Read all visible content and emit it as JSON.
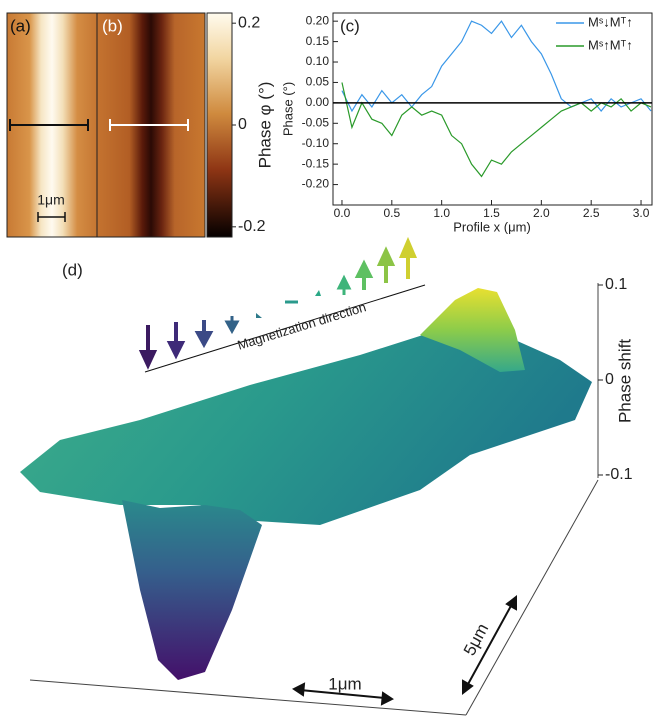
{
  "chart_data": [
    {
      "type": "phase-images",
      "panel_labels": [
        "(a)",
        "(b)"
      ],
      "scale_bar_label": "1μm",
      "colorbar": {
        "label": "Phase φ (°)",
        "lim": [
          -0.22,
          0.22
        ],
        "ticks": [
          0.2,
          0,
          -0.2
        ]
      }
    },
    {
      "type": "line",
      "panel_label": "(c)",
      "y_label": "Phase (°)",
      "x_label": "Profile x (μm)",
      "x": [
        0,
        0.1,
        0.2,
        0.3,
        0.4,
        0.5,
        0.6,
        0.7,
        0.8,
        0.9,
        1.0,
        1.1,
        1.2,
        1.3,
        1.4,
        1.5,
        1.6,
        1.7,
        1.8,
        1.9,
        2.0,
        2.1,
        2.2,
        2.3,
        2.4,
        2.5,
        2.6,
        2.7,
        2.8,
        2.9,
        3.0,
        3.1
      ],
      "series": [
        {
          "name": "Mˢ↓Mᵀ↑",
          "color": "#3a97e8",
          "values": [
            0.03,
            -0.02,
            0.02,
            -0.01,
            0.03,
            0.0,
            0.02,
            -0.01,
            0.02,
            0.04,
            0.09,
            0.12,
            0.15,
            0.2,
            0.19,
            0.17,
            0.2,
            0.16,
            0.19,
            0.15,
            0.12,
            0.07,
            0.01,
            -0.01,
            0.0,
            0.01,
            -0.02,
            0.01,
            -0.01,
            0.0,
            0.01,
            -0.02
          ]
        },
        {
          "name": "Mˢ↑Mᵀ↑",
          "color": "#2a9a2a",
          "values": [
            0.05,
            -0.06,
            0.0,
            -0.04,
            -0.05,
            -0.08,
            -0.03,
            -0.01,
            -0.03,
            -0.02,
            -0.03,
            -0.08,
            -0.1,
            -0.15,
            -0.18,
            -0.14,
            -0.15,
            -0.12,
            -0.1,
            -0.08,
            -0.06,
            -0.04,
            -0.02,
            -0.01,
            0.0,
            -0.02,
            0.0,
            -0.01,
            0.01,
            -0.02,
            0.0,
            -0.01
          ]
        }
      ],
      "xlim": [
        -0.09,
        3.11
      ],
      "ylim": [
        -0.25,
        0.22
      ],
      "xticks": [
        {
          "value": 0,
          "label": "0.0"
        },
        {
          "value": 0.5,
          "label": "0.5"
        },
        {
          "value": 1,
          "label": "1.0"
        },
        {
          "value": 1.5,
          "label": "1.5"
        },
        {
          "value": 2,
          "label": "2.0"
        },
        {
          "value": 2.5,
          "label": "2.5"
        },
        {
          "value": 3,
          "label": "3.0"
        }
      ],
      "yticks": [
        {
          "value": 0.2,
          "label": "0.20"
        },
        {
          "value": 0.15,
          "label": "0.15"
        },
        {
          "value": 0.1,
          "label": "0.10"
        },
        {
          "value": 0.05,
          "label": "0.05"
        },
        {
          "value": 0,
          "label": "0.00"
        },
        {
          "value": -0.05,
          "label": "-0.05"
        },
        {
          "value": -0.1,
          "label": "-0.10"
        },
        {
          "value": -0.15,
          "label": "-0.15"
        },
        {
          "value": -0.2,
          "label": "-0.20"
        }
      ],
      "reference_line": 0,
      "legend": "upper right"
    },
    {
      "type": "surface",
      "panel_label": "(d)",
      "annotation": "Magnetization direction",
      "z_label": "Phase shift",
      "zlim": [
        -0.1,
        0.1
      ],
      "zticks": [
        0.1,
        0,
        -0.1
      ],
      "x_scale_label": "1μm",
      "y_scale_label": "5μm"
    }
  ]
}
